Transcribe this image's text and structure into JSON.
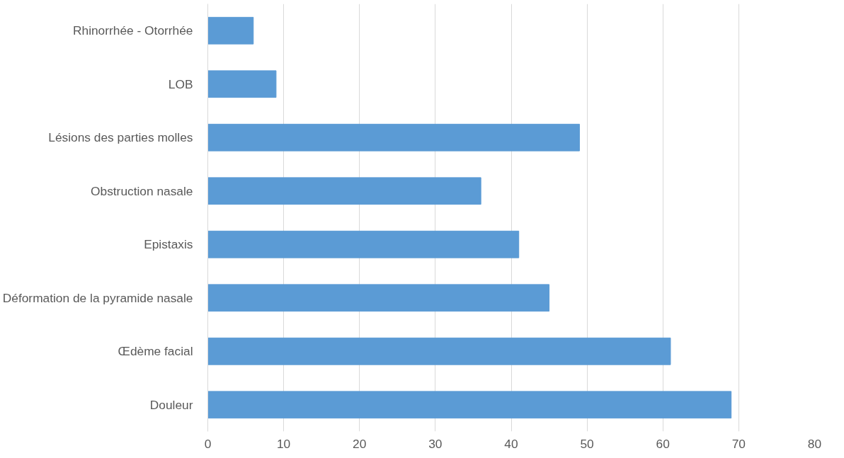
{
  "chart_data": {
    "type": "bar",
    "orientation": "horizontal",
    "categories": [
      "Rhinorrhée - Otorrhée",
      "LOB",
      "Lésions des parties molles",
      "Obstruction nasale",
      "Epistaxis",
      "Déformation de la pyramide nasale",
      "Œdème facial",
      "Douleur"
    ],
    "values": [
      6,
      9,
      49,
      36,
      41,
      45,
      61,
      69
    ],
    "color": "#5b9bd5",
    "xlim": [
      0,
      80
    ],
    "xticks": [
      0,
      10,
      20,
      30,
      40,
      50,
      60,
      70,
      80
    ],
    "grid": "x"
  }
}
